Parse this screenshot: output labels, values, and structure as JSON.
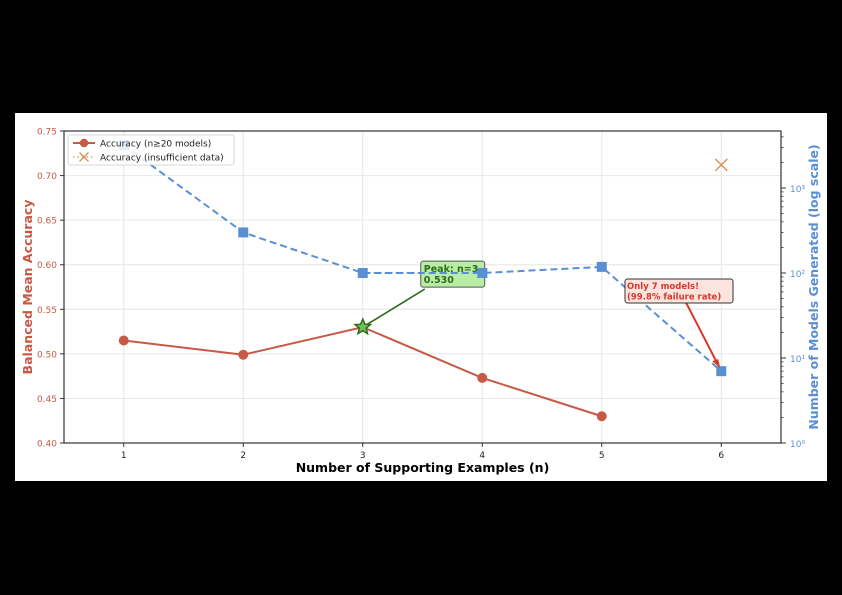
{
  "chart_data": {
    "type": "line",
    "title": "",
    "xlabel": "Number of Supporting Examples (n)",
    "ylabel": "Balanced Mean Accuracy",
    "y2label": "Number of Models Generated (log scale)",
    "x": [
      1,
      2,
      3,
      4,
      5,
      6
    ],
    "xlim": [
      0.5,
      6.5
    ],
    "ylim": [
      0.4,
      0.75
    ],
    "y2lim": [
      1,
      5000
    ],
    "y2scale": "log",
    "xticks": [
      "1",
      "2",
      "3",
      "4",
      "5",
      "6"
    ],
    "yticks": [
      "0.40",
      "0.45",
      "0.50",
      "0.55",
      "0.60",
      "0.65",
      "0.70",
      "0.75"
    ],
    "y2ticks": [
      "10⁰",
      "10¹",
      "10²",
      "10³"
    ],
    "grid": true,
    "legend_position": "upper left",
    "series": [
      {
        "name": "Accuracy (n≥20 models)",
        "axis": "left",
        "color": "#c65a46",
        "marker": "circle",
        "x": [
          1,
          2,
          3,
          4,
          5
        ],
        "values": [
          0.515,
          0.499,
          0.53,
          0.473,
          0.43
        ]
      },
      {
        "name": "Accuracy (insufficient data)",
        "axis": "left",
        "color": "#d4935a",
        "marker": "x",
        "x": [
          6
        ],
        "values": [
          0.712
        ]
      },
      {
        "name": "Models generated",
        "axis": "right",
        "color": "#5b8fd4",
        "marker": "square",
        "linestyle": "dashed",
        "x": [
          1,
          2,
          3,
          4,
          5,
          6
        ],
        "values": [
          3200,
          300,
          100,
          100,
          118,
          7
        ]
      }
    ],
    "annotations": [
      {
        "text_line1": "Peak: n=3",
        "text_line2": "0.530",
        "x": 3,
        "y": 0.53,
        "color": "#2d6b1f",
        "bg": "#b9eda6"
      },
      {
        "text_line1": "Only 7 models!",
        "text_line2": "(99.8% failure rate)",
        "x": 6,
        "y2": 7,
        "color": "#d9382b",
        "bg": "#fbe3de"
      }
    ]
  },
  "colors": {
    "accuracy": "#c65a46",
    "insufficient": "#d4935a",
    "models": "#5b8fd4",
    "peak": "#2d6b1f"
  }
}
